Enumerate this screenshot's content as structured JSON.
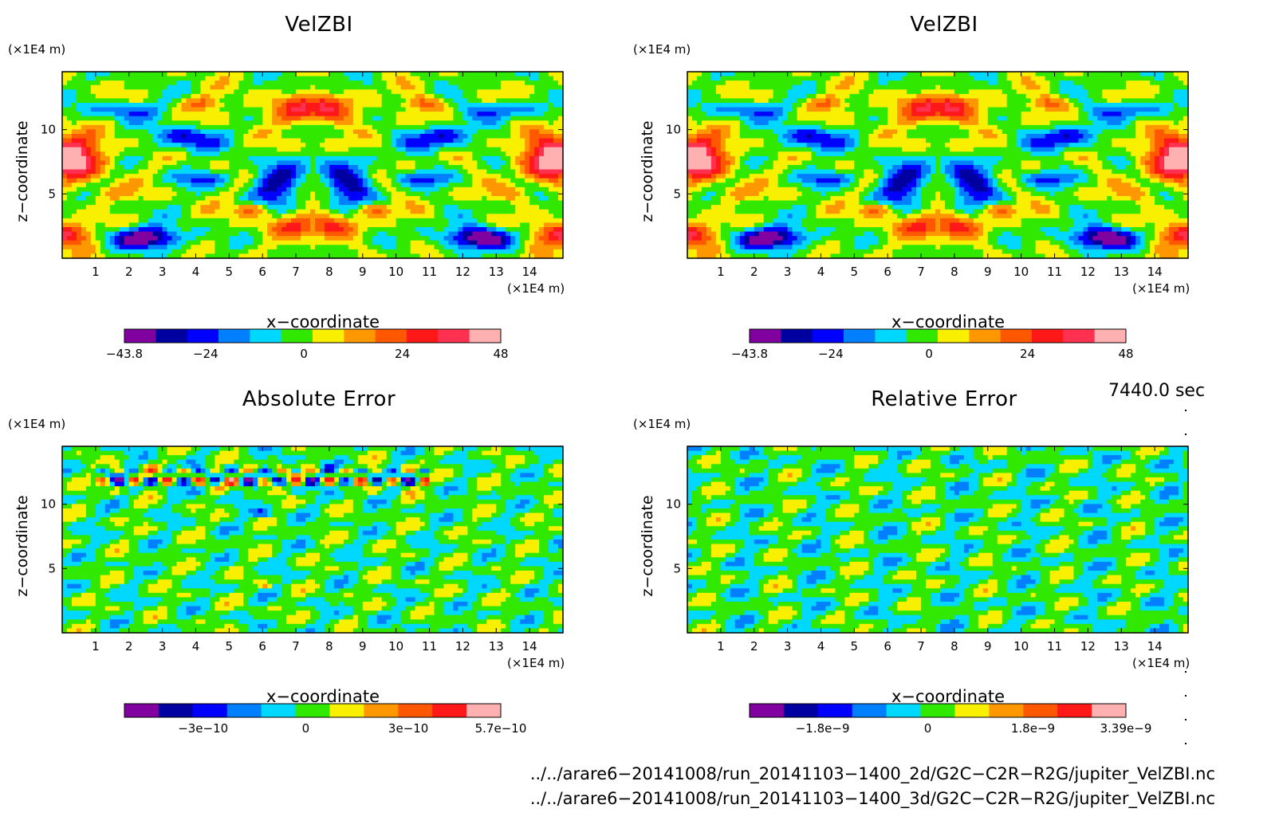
{
  "chart_data": [
    {
      "type": "heatmap",
      "title": "VelZBI",
      "xlabel": "x−coordinate",
      "ylabel": "z−coordinate",
      "x_unit": "(×1E4 m)",
      "y_unit": "(×1E4 m)",
      "xlim": [
        0,
        15
      ],
      "ylim": [
        0,
        14.5
      ],
      "x_ticks": [
        "1",
        "2",
        "3",
        "4",
        "5",
        "6",
        "7",
        "8",
        "9",
        "10",
        "11",
        "12",
        "13",
        "14"
      ],
      "y_ticks": [
        "5",
        "10"
      ],
      "colorbar": {
        "ticks": [
          "−43.8",
          "−24",
          "0",
          "24",
          "48"
        ],
        "tick_values": [
          -43.8,
          -24,
          0,
          24,
          48
        ],
        "min": -43.8,
        "max": 48,
        "colors": [
          "#8000a0",
          "#0000a0",
          "#0000ff",
          "#0080ff",
          "#00d8ff",
          "#30e800",
          "#f8f000",
          "#ff9800",
          "#ff5800",
          "#ff1818",
          "#ff3050",
          "#ffb0b0"
        ]
      }
    },
    {
      "type": "heatmap",
      "title": "VelZBI",
      "xlabel": "x−coordinate",
      "ylabel": "z−coordinate",
      "x_unit": "(×1E4 m)",
      "y_unit": "(×1E4 m)",
      "xlim": [
        0,
        15
      ],
      "ylim": [
        0,
        14.5
      ],
      "x_ticks": [
        "1",
        "2",
        "3",
        "4",
        "5",
        "6",
        "7",
        "8",
        "9",
        "10",
        "11",
        "12",
        "13",
        "14"
      ],
      "y_ticks": [
        "5",
        "10"
      ],
      "colorbar": {
        "ticks": [
          "−43.8",
          "−24",
          "0",
          "24",
          "48"
        ],
        "tick_values": [
          -43.8,
          -24,
          0,
          24,
          48
        ],
        "min": -43.8,
        "max": 48,
        "colors": [
          "#8000a0",
          "#0000a0",
          "#0000ff",
          "#0080ff",
          "#00d8ff",
          "#30e800",
          "#f8f000",
          "#ff9800",
          "#ff5800",
          "#ff1818",
          "#ff3050",
          "#ffb0b0"
        ]
      }
    },
    {
      "type": "heatmap",
      "title": "Absolute Error",
      "xlabel": "x−coordinate",
      "ylabel": "z−coordinate",
      "x_unit": "(×1E4 m)",
      "y_unit": "(×1E4 m)",
      "xlim": [
        0,
        15
      ],
      "ylim": [
        0,
        14.5
      ],
      "x_ticks": [
        "1",
        "2",
        "3",
        "4",
        "5",
        "6",
        "7",
        "8",
        "9",
        "10",
        "11",
        "12",
        "13",
        "14"
      ],
      "y_ticks": [
        "5",
        "10"
      ],
      "colorbar": {
        "ticks": [
          "−3e−10",
          "0",
          "3e−10",
          "5.7e−10"
        ],
        "tick_values": [
          -3e-10,
          0,
          3e-10,
          5.7e-10
        ],
        "min": -5.3e-10,
        "max": 5.7e-10,
        "colors": [
          "#8000a0",
          "#0000a0",
          "#0000ff",
          "#0080ff",
          "#00d8ff",
          "#30e800",
          "#f8f000",
          "#ff9800",
          "#ff5800",
          "#ff1818",
          "#ffb0b0"
        ]
      }
    },
    {
      "type": "heatmap",
      "title": "Relative Error",
      "xlabel": "x−coordinate",
      "ylabel": "z−coordinate",
      "x_unit": "(×1E4 m)",
      "y_unit": "(×1E4 m)",
      "xlim": [
        0,
        15
      ],
      "ylim": [
        0,
        14.5
      ],
      "x_ticks": [
        "1",
        "2",
        "3",
        "4",
        "5",
        "6",
        "7",
        "8",
        "9",
        "10",
        "11",
        "12",
        "13",
        "14"
      ],
      "y_ticks": [
        "5",
        "10"
      ],
      "colorbar": {
        "ticks": [
          "−1.8e−9",
          "0",
          "1.8e−9",
          "3.39e−9"
        ],
        "tick_values": [
          -1.8e-09,
          0,
          1.8e-09,
          3.39e-09
        ],
        "min": -3.05e-09,
        "max": 3.39e-09,
        "colors": [
          "#8000a0",
          "#0000a0",
          "#0000ff",
          "#0080ff",
          "#00d8ff",
          "#30e800",
          "#f8f000",
          "#ff9800",
          "#ff5800",
          "#ff1818",
          "#ffb0b0"
        ]
      }
    }
  ],
  "time": "7440.0 sec",
  "files": [
    "../../arare6−20141008/run_20141103−1400_2d/G2C−C2R−R2G/jupiter_VelZBI.nc",
    "../../arare6−20141008/run_20141103−1400_3d/G2C−C2R−R2G/jupiter_VelZBI.nc"
  ]
}
